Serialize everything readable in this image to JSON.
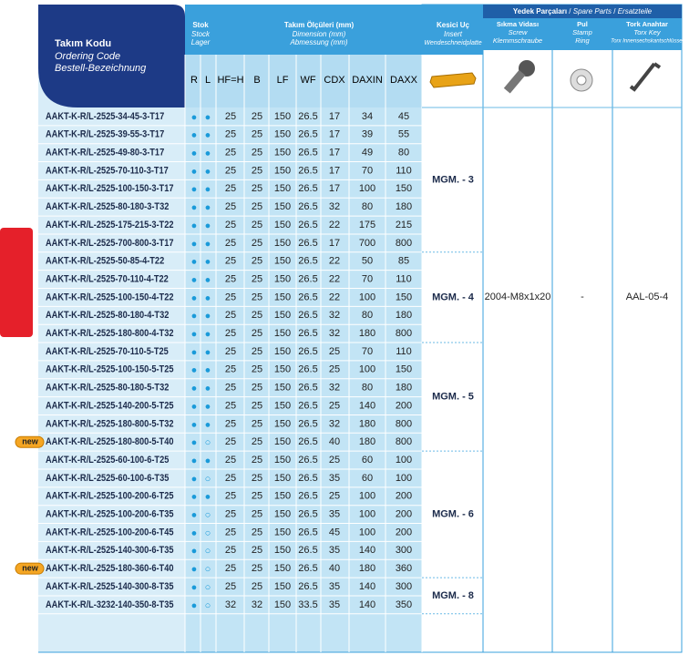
{
  "header": {
    "ordering_code": [
      "Takım Kodu",
      "Ordering Code",
      "Bestell-Bezeichnung"
    ],
    "stock": {
      "title": [
        "Stok",
        "Stock",
        "Lager"
      ],
      "columns": [
        "R",
        "L"
      ]
    },
    "dimensions": {
      "title": [
        "Takım Ölçüleri (mm)",
        "Dimension (mm)",
        "Abmessung (mm)"
      ],
      "columns": [
        "HF=H",
        "B",
        "LF",
        "WF",
        "CDX",
        "DAXIN",
        "DAXX"
      ]
    },
    "insert": [
      "Kesici Uç",
      "Insert",
      "Wendeschneidplatte"
    ],
    "spare_parts": {
      "title": [
        "Yedek Parçaları",
        "/",
        "Spare Parts",
        "/",
        "Ersatzteile"
      ],
      "screw": [
        "Sıkma Vidası",
        "Screw",
        "Klemmschraube"
      ],
      "ring": [
        "Pul",
        "Stamp",
        "Ring"
      ],
      "key": [
        "Tork Anahtar",
        "Torx Key",
        "Torx Innensechskantschlüssel"
      ]
    }
  },
  "groups": [
    {
      "insert": "MGM. - 3",
      "rows": [
        {
          "code": "AAKT-K-R/L-2525-34-45-3-T17",
          "stock": [
            "●",
            "●"
          ],
          "dims": [
            25,
            25,
            150,
            26.5,
            17,
            34,
            45
          ]
        },
        {
          "code": "AAKT-K-R/L-2525-39-55-3-T17",
          "stock": [
            "●",
            "●"
          ],
          "dims": [
            25,
            25,
            150,
            26.5,
            17,
            39,
            55
          ]
        },
        {
          "code": "AAKT-K-R/L-2525-49-80-3-T17",
          "stock": [
            "●",
            "●"
          ],
          "dims": [
            25,
            25,
            150,
            26.5,
            17,
            49,
            80
          ]
        },
        {
          "code": "AAKT-K-R/L-2525-70-110-3-T17",
          "stock": [
            "●",
            "●"
          ],
          "dims": [
            25,
            25,
            150,
            26.5,
            17,
            70,
            110
          ]
        },
        {
          "code": "AAKT-K-R/L-2525-100-150-3-T17",
          "stock": [
            "●",
            "●"
          ],
          "dims": [
            25,
            25,
            150,
            26.5,
            17,
            100,
            150
          ]
        },
        {
          "code": "AAKT-K-R/L-2525-80-180-3-T32",
          "stock": [
            "●",
            "●"
          ],
          "dims": [
            25,
            25,
            150,
            26.5,
            32,
            80,
            180
          ]
        },
        {
          "code": "AAKT-K-R/L-2525-175-215-3-T22",
          "stock": [
            "●",
            "●"
          ],
          "dims": [
            25,
            25,
            150,
            26.5,
            22,
            175,
            215
          ]
        },
        {
          "code": "AAKT-K-R/L-2525-700-800-3-T17",
          "stock": [
            "●",
            "●"
          ],
          "dims": [
            25,
            25,
            150,
            26.5,
            17,
            700,
            800
          ]
        }
      ]
    },
    {
      "insert": "MGM. - 4",
      "rows": [
        {
          "code": "AAKT-K-R/L-2525-50-85-4-T22",
          "stock": [
            "●",
            "●"
          ],
          "dims": [
            25,
            25,
            150,
            26.5,
            22,
            50,
            85
          ]
        },
        {
          "code": "AAKT-K-R/L-2525-70-110-4-T22",
          "stock": [
            "●",
            "●"
          ],
          "dims": [
            25,
            25,
            150,
            26.5,
            22,
            70,
            110
          ]
        },
        {
          "code": "AAKT-K-R/L-2525-100-150-4-T22",
          "stock": [
            "●",
            "●"
          ],
          "dims": [
            25,
            25,
            150,
            26.5,
            22,
            100,
            150
          ]
        },
        {
          "code": "AAKT-K-R/L-2525-80-180-4-T32",
          "stock": [
            "●",
            "●"
          ],
          "dims": [
            25,
            25,
            150,
            26.5,
            32,
            80,
            180
          ]
        },
        {
          "code": "AAKT-K-R/L-2525-180-800-4-T32",
          "stock": [
            "●",
            "●"
          ],
          "dims": [
            25,
            25,
            150,
            26.5,
            32,
            180,
            800
          ]
        }
      ]
    },
    {
      "insert": "MGM. - 5",
      "rows": [
        {
          "code": "AAKT-K-R/L-2525-70-110-5-T25",
          "stock": [
            "●",
            "●"
          ],
          "dims": [
            25,
            25,
            150,
            26.5,
            25,
            70,
            110
          ]
        },
        {
          "code": "AAKT-K-R/L-2525-100-150-5-T25",
          "stock": [
            "●",
            "●"
          ],
          "dims": [
            25,
            25,
            150,
            26.5,
            25,
            100,
            150
          ]
        },
        {
          "code": "AAKT-K-R/L-2525-80-180-5-T32",
          "stock": [
            "●",
            "●"
          ],
          "dims": [
            25,
            25,
            150,
            26.5,
            32,
            80,
            180
          ]
        },
        {
          "code": "AAKT-K-R/L-2525-140-200-5-T25",
          "stock": [
            "●",
            "●"
          ],
          "dims": [
            25,
            25,
            150,
            26.5,
            25,
            140,
            200
          ]
        },
        {
          "code": "AAKT-K-R/L-2525-180-800-5-T32",
          "stock": [
            "●",
            "●"
          ],
          "dims": [
            25,
            25,
            150,
            26.5,
            32,
            180,
            800
          ]
        },
        {
          "code": "AAKT-K-R/L-2525-180-800-5-T40",
          "stock": [
            "●",
            "○"
          ],
          "dims": [
            25,
            25,
            150,
            26.5,
            40,
            180,
            800
          ],
          "badge": "new"
        }
      ]
    },
    {
      "insert": "MGM. - 6",
      "rows": [
        {
          "code": "AAKT-K-R/L-2525-60-100-6-T25",
          "stock": [
            "●",
            "●"
          ],
          "dims": [
            25,
            25,
            150,
            26.5,
            25,
            60,
            100
          ]
        },
        {
          "code": "AAKT-K-R/L-2525-60-100-6-T35",
          "stock": [
            "●",
            "○"
          ],
          "dims": [
            25,
            25,
            150,
            26.5,
            35,
            60,
            100
          ]
        },
        {
          "code": "AAKT-K-R/L-2525-100-200-6-T25",
          "stock": [
            "●",
            "●"
          ],
          "dims": [
            25,
            25,
            150,
            26.5,
            25,
            100,
            200
          ]
        },
        {
          "code": "AAKT-K-R/L-2525-100-200-6-T35",
          "stock": [
            "●",
            "○"
          ],
          "dims": [
            25,
            25,
            150,
            26.5,
            35,
            100,
            200
          ]
        },
        {
          "code": "AAKT-K-R/L-2525-100-200-6-T45",
          "stock": [
            "●",
            "○"
          ],
          "dims": [
            25,
            25,
            150,
            26.5,
            45,
            100,
            200
          ]
        },
        {
          "code": "AAKT-K-R/L-2525-140-300-6-T35",
          "stock": [
            "●",
            "○"
          ],
          "dims": [
            25,
            25,
            150,
            26.5,
            35,
            140,
            300
          ]
        },
        {
          "code": "AAKT-K-R/L-2525-180-360-6-T40",
          "stock": [
            "●",
            "○"
          ],
          "dims": [
            25,
            25,
            150,
            26.5,
            40,
            180,
            360
          ],
          "badge": "new"
        }
      ]
    },
    {
      "insert": "MGM. - 8",
      "rows": [
        {
          "code": "AAKT-K-R/L-2525-140-300-8-T35",
          "stock": [
            "●",
            "○"
          ],
          "dims": [
            25,
            25,
            150,
            26.5,
            35,
            140,
            300
          ]
        },
        {
          "code": "AAKT-K-R/L-3232-140-350-8-T35",
          "stock": [
            "●",
            "○"
          ],
          "dims": [
            32,
            32,
            150,
            33.5,
            35,
            140,
            350
          ]
        }
      ]
    }
  ],
  "spare": {
    "screw": "2004-M8x1x20",
    "ring": "-",
    "key": "AAL-05-4"
  }
}
